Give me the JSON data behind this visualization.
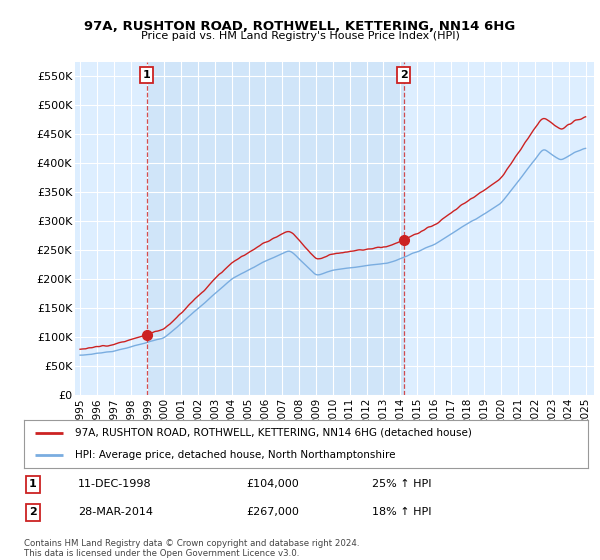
{
  "title": "97A, RUSHTON ROAD, ROTHWELL, KETTERING, NN14 6HG",
  "subtitle": "Price paid vs. HM Land Registry's House Price Index (HPI)",
  "legend_line1": "97A, RUSHTON ROAD, ROTHWELL, KETTERING, NN14 6HG (detached house)",
  "legend_line2": "HPI: Average price, detached house, North Northamptonshire",
  "footnote": "Contains HM Land Registry data © Crown copyright and database right 2024.\nThis data is licensed under the Open Government Licence v3.0.",
  "purchase1_date": "11-DEC-1998",
  "purchase1_price": 104000,
  "purchase1_hpi": "25% ↑ HPI",
  "purchase2_date": "28-MAR-2014",
  "purchase2_price": 267000,
  "purchase2_hpi": "18% ↑ HPI",
  "hpi_color": "#7aade0",
  "price_color": "#cc2222",
  "marker_color": "#cc2222",
  "plot_bg_color": "#ddeeff",
  "ylim_min": 0,
  "ylim_max": 575000,
  "yticks": [
    0,
    50000,
    100000,
    150000,
    200000,
    250000,
    300000,
    350000,
    400000,
    450000,
    500000,
    550000
  ],
  "ytick_labels": [
    "£0",
    "£50K",
    "£100K",
    "£150K",
    "£200K",
    "£250K",
    "£300K",
    "£350K",
    "£400K",
    "£450K",
    "£500K",
    "£550K"
  ],
  "xstart_year": 1995,
  "xend_year": 2025
}
